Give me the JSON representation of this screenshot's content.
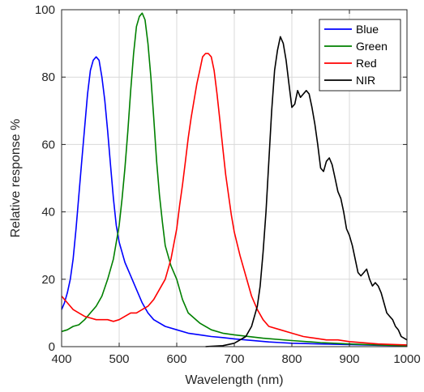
{
  "chart_data": {
    "type": "line",
    "xlabel": "Wavelength (nm)",
    "ylabel": "Relative response %",
    "xlim": [
      400,
      1000
    ],
    "ylim": [
      0,
      100
    ],
    "xticks": [
      "400",
      "500",
      "600",
      "700",
      "800",
      "900",
      "1000"
    ],
    "yticks": [
      "0",
      "20",
      "40",
      "60",
      "80",
      "100"
    ],
    "grid": true,
    "legend_position": "top-right",
    "series": [
      {
        "name": "Blue",
        "color": "#0000ff",
        "x": [
          400,
          405,
          410,
          415,
          420,
          425,
          430,
          435,
          440,
          445,
          450,
          455,
          460,
          465,
          470,
          475,
          480,
          485,
          490,
          495,
          500,
          510,
          520,
          530,
          540,
          550,
          560,
          580,
          600,
          620,
          640,
          660,
          680,
          700,
          720,
          740,
          760,
          780,
          800,
          850,
          900,
          950,
          1000
        ],
        "y": [
          11,
          13,
          16,
          20,
          26,
          35,
          45,
          55,
          65,
          75,
          82,
          85,
          86,
          85,
          80,
          73,
          64,
          54,
          44,
          36,
          31,
          25,
          21,
          17,
          13,
          10,
          8,
          6,
          5,
          4,
          3.5,
          3,
          2.7,
          2.3,
          2,
          1.7,
          1.4,
          1.2,
          1,
          0.8,
          0.6,
          0.4,
          0.3
        ]
      },
      {
        "name": "Green",
        "color": "#008000",
        "x": [
          400,
          410,
          420,
          430,
          440,
          450,
          460,
          470,
          480,
          490,
          500,
          505,
          510,
          515,
          520,
          525,
          530,
          535,
          540,
          545,
          550,
          555,
          560,
          565,
          570,
          575,
          580,
          590,
          600,
          610,
          620,
          640,
          660,
          680,
          700,
          750,
          800,
          850,
          900,
          950,
          1000
        ],
        "y": [
          4.5,
          5,
          6,
          6.5,
          8,
          10,
          12,
          15,
          20,
          26,
          36,
          44,
          53,
          64,
          76,
          87,
          95,
          98,
          99,
          97,
          90,
          80,
          68,
          55,
          45,
          37,
          30,
          24,
          20,
          14,
          10,
          7,
          5,
          4,
          3.5,
          2.5,
          1.8,
          1.2,
          0.8,
          0.5,
          0.3
        ]
      },
      {
        "name": "Red",
        "color": "#ff0000",
        "x": [
          400,
          410,
          420,
          430,
          440,
          450,
          460,
          470,
          480,
          490,
          500,
          510,
          520,
          530,
          540,
          550,
          560,
          570,
          580,
          590,
          600,
          605,
          610,
          615,
          620,
          625,
          630,
          635,
          640,
          645,
          650,
          655,
          660,
          665,
          670,
          675,
          680,
          685,
          690,
          695,
          700,
          710,
          720,
          730,
          740,
          750,
          760,
          780,
          800,
          820,
          840,
          860,
          880,
          900,
          950,
          1000
        ],
        "y": [
          15,
          13,
          11,
          10,
          9,
          8.5,
          8,
          8,
          8,
          7.5,
          8,
          9,
          10,
          10,
          11,
          12,
          14,
          17,
          20,
          26,
          35,
          42,
          48,
          55,
          62,
          68,
          73,
          78,
          82,
          86,
          87,
          87,
          86,
          82,
          75,
          67,
          59,
          51,
          45,
          39,
          34,
          27,
          21,
          15,
          11,
          8,
          6,
          5,
          4,
          3,
          2.5,
          2,
          2,
          1.5,
          0.8,
          0.5
        ]
      },
      {
        "name": "NIR",
        "color": "#000000",
        "x": [
          650,
          680,
          700,
          720,
          730,
          740,
          745,
          750,
          755,
          760,
          765,
          770,
          775,
          780,
          785,
          790,
          795,
          800,
          805,
          810,
          815,
          820,
          825,
          830,
          835,
          840,
          845,
          850,
          855,
          860,
          865,
          870,
          875,
          880,
          885,
          890,
          895,
          900,
          905,
          910,
          915,
          920,
          925,
          930,
          935,
          940,
          945,
          950,
          955,
          960,
          965,
          970,
          975,
          980,
          985,
          990,
          995,
          1000
        ],
        "y": [
          0,
          0.3,
          1,
          3,
          6,
          12,
          18,
          28,
          40,
          55,
          70,
          82,
          88,
          92,
          90,
          85,
          78,
          71,
          72,
          76,
          74,
          75,
          76,
          75,
          71,
          66,
          60,
          53,
          52,
          55,
          56,
          54,
          50,
          46,
          44,
          40,
          35,
          33,
          30,
          26,
          22,
          21,
          22,
          23,
          20,
          18,
          19,
          18,
          16,
          13,
          10,
          9,
          8,
          6,
          5,
          3,
          2.5,
          2
        ]
      }
    ]
  }
}
